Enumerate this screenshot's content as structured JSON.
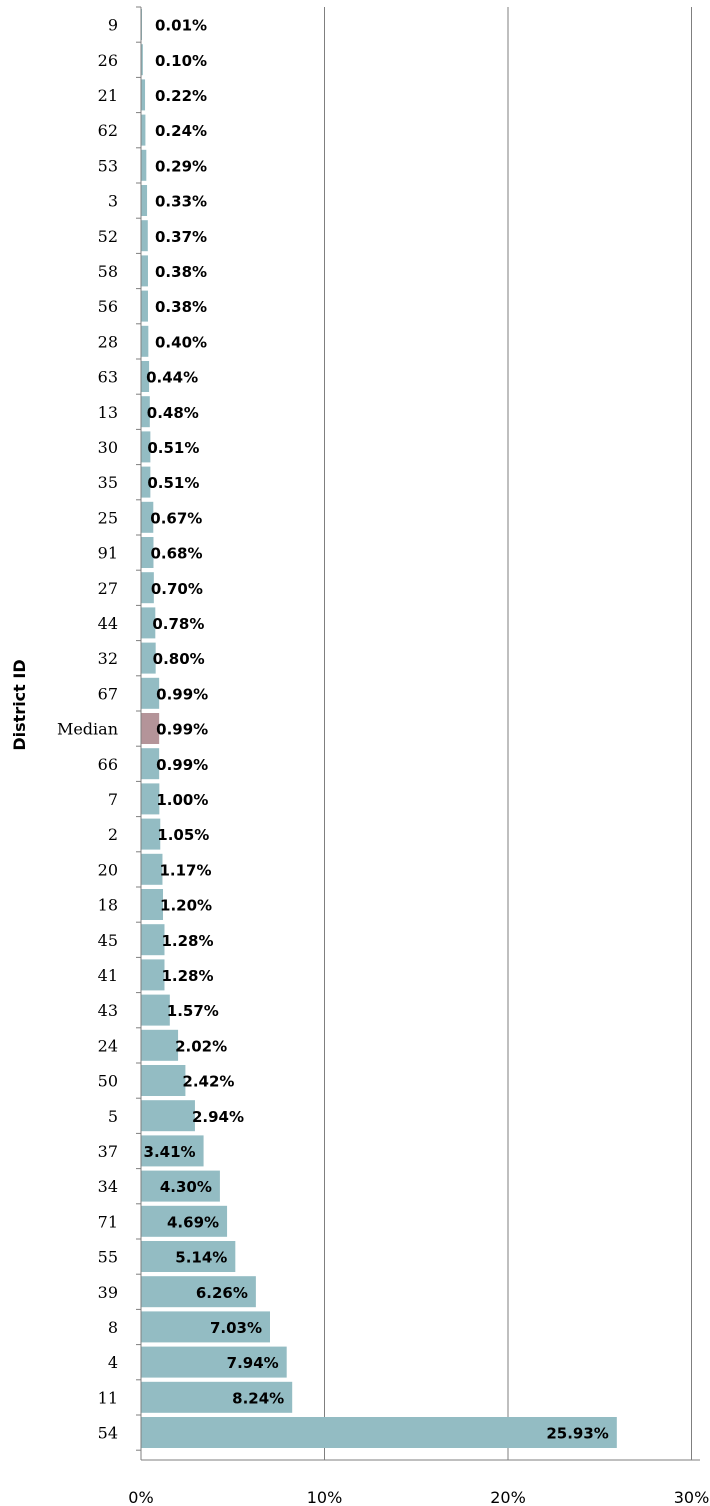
{
  "chart_data": {
    "type": "bar",
    "orientation": "horizontal",
    "title": "",
    "xlabel": "",
    "ylabel": "District ID",
    "xlim": [
      0,
      30
    ],
    "x_ticks": [
      "0%",
      "10%",
      "20%",
      "30%"
    ],
    "grid": "vertical lines at 10% intervals",
    "colors": {
      "bar": "#93bcc3",
      "median_bar": "#b49499",
      "grid": "#7f7f7f"
    },
    "categories": [
      "9",
      "26",
      "21",
      "62",
      "53",
      "3",
      "52",
      "58",
      "56",
      "28",
      "63",
      "13",
      "30",
      "35",
      "25",
      "91",
      "27",
      "44",
      "32",
      "67",
      "Median",
      "66",
      "7",
      "2",
      "20",
      "18",
      "45",
      "41",
      "43",
      "24",
      "50",
      "5",
      "37",
      "34",
      "71",
      "55",
      "39",
      "8",
      "4",
      "11",
      "54"
    ],
    "values": [
      0.01,
      0.1,
      0.22,
      0.24,
      0.29,
      0.33,
      0.37,
      0.38,
      0.38,
      0.4,
      0.44,
      0.48,
      0.51,
      0.51,
      0.67,
      0.68,
      0.7,
      0.78,
      0.8,
      0.99,
      0.99,
      0.99,
      1.0,
      1.05,
      1.17,
      1.2,
      1.28,
      1.28,
      1.57,
      2.02,
      2.42,
      2.94,
      3.41,
      4.3,
      4.69,
      5.14,
      6.26,
      7.03,
      7.94,
      8.24,
      25.93
    ],
    "data_labels": [
      "0.01%",
      "0.10%",
      "0.22%",
      "0.24%",
      "0.29%",
      "0.33%",
      "0.37%",
      "0.38%",
      "0.38%",
      "0.40%",
      "0.44%",
      "0.48%",
      "0.51%",
      "0.51%",
      "0.67%",
      "0.68%",
      "0.70%",
      "0.78%",
      "0.80%",
      "0.99%",
      "0.99%",
      "0.99%",
      "1.00%",
      "1.05%",
      "1.17%",
      "1.20%",
      "1.28%",
      "1.28%",
      "1.57%",
      "2.02%",
      "2.42%",
      "2.94%",
      "3.41%",
      "4.30%",
      "4.69%",
      "5.14%",
      "6.26%",
      "7.03%",
      "7.94%",
      "8.24%",
      "25.93%"
    ],
    "highlight_category": "Median"
  }
}
